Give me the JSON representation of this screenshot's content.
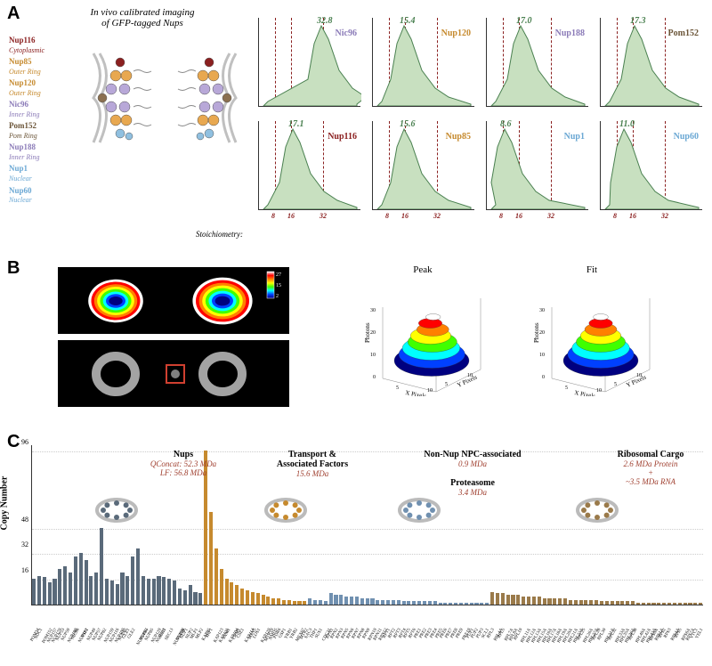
{
  "panelA": {
    "label": "A",
    "title": "In vivo calibrated imaging\nof GFP-tagged Nups",
    "nups": [
      {
        "name": "Nup116",
        "loc": "Cytoplasmic",
        "color": "#8b2020"
      },
      {
        "name": "Nup85",
        "loc": "Outer Ring",
        "color": "#c68a2e"
      },
      {
        "name": "Nup120",
        "loc": "Outer Ring",
        "color": "#c68a2e"
      },
      {
        "name": "Nic96",
        "loc": "Inner Ring",
        "color": "#8b7bb8"
      },
      {
        "name": "Pom152",
        "loc": "Pom Ring",
        "color": "#6b5538"
      },
      {
        "name": "Nup188",
        "loc": "Inner Ring",
        "color": "#8b7bb8"
      },
      {
        "name": "Nup1",
        "loc": "Nuclear",
        "color": "#6ba8d4"
      },
      {
        "name": "Nup60",
        "loc": "Nuclear",
        "color": "#6ba8d4"
      }
    ],
    "npc_colors": {
      "cytoplasmic": "#8b2020",
      "outer_ring": "#e8a850",
      "inner_ring": "#b8a8d8",
      "pom_ring": "#8b7050",
      "nuclear": "#90c0e0",
      "membrane": "#c0c0c0",
      "fg": "#888888"
    },
    "histograms": [
      {
        "name": "Nic96",
        "value": "32.8",
        "color": "#8b7bb8",
        "peak_x": 70,
        "fill": "#c8e0c0"
      },
      {
        "name": "Nup120",
        "value": "15.4",
        "color": "#c68a2e",
        "peak_x": 35,
        "fill": "#c8e0c0"
      },
      {
        "name": "Nup188",
        "value": "17.0",
        "color": "#8b7bb8",
        "peak_x": 38,
        "fill": "#c8e0c0"
      },
      {
        "name": "Pom152",
        "value": "17.3",
        "color": "#6b5538",
        "peak_x": 38,
        "fill": "#c8e0c0"
      },
      {
        "name": "Nup116",
        "value": "17.1",
        "color": "#8b2020",
        "peak_x": 38,
        "fill": "#c8e0c0"
      },
      {
        "name": "Nup85",
        "value": "15.6",
        "color": "#c68a2e",
        "peak_x": 35,
        "fill": "#c8e0c0"
      },
      {
        "name": "Nup1",
        "value": "8.6",
        "color": "#6ba8d4",
        "peak_x": 20,
        "fill": "#c8e0c0"
      },
      {
        "name": "Nup60",
        "value": "11.0",
        "color": "#6ba8d4",
        "peak_x": 26,
        "fill": "#c8e0c0"
      }
    ],
    "ref_lines": [
      18,
      36,
      72
    ],
    "ref_labels": [
      "8",
      "16",
      "32"
    ],
    "stoich_label": "Stoichiometry:",
    "hist_fill": "#c8e0c0",
    "value_color": "#4a8050"
  },
  "panelB": {
    "label": "B",
    "colorbar": {
      "max": "27",
      "mid": "15",
      "min": "2"
    },
    "peak_title": "Peak",
    "fit_title": "Fit",
    "axis_x": "X Pixels",
    "axis_y": "Y Pixels",
    "axis_z": "Photons",
    "z_max": 30,
    "heatmap_colors": [
      "#000080",
      "#0040ff",
      "#00ffff",
      "#40ff00",
      "#ffff00",
      "#ff8000",
      "#ff0000",
      "#ffffff"
    ]
  },
  "panelC": {
    "label": "C",
    "ylabel": "Copy Number",
    "yticks": [
      16,
      32,
      48,
      96
    ],
    "ymax": 100,
    "groups": [
      {
        "name": "Nups",
        "sub": "QConcat: 52.3 MDa\nLF: 56.8 MDa",
        "color": "#5a6a7a",
        "sub_color": "#a04030"
      },
      {
        "name": "Transport &\nAssociated\nFactors",
        "sub": "15.6 MDa",
        "color": "#c68a2e",
        "sub_color": "#a04030"
      },
      {
        "name": "Non-Nup NPC-associated",
        "sub": "0.9 MDa",
        "color": "#7090b0",
        "sub_color": "#a04030"
      },
      {
        "name2": "Proteasome",
        "sub2": "3.4 MDa",
        "color": "#7090b0"
      },
      {
        "name": "Ribosomal Cargo",
        "sub": "2.6 MDa Protein\n+\n~3.5 MDa RNA",
        "color": "#9a7a4a",
        "sub_color": "#a04030"
      }
    ],
    "bars": [
      {
        "v": 16,
        "c": "#5a6a7a",
        "l": "POM34"
      },
      {
        "v": 18,
        "c": "#5a6a7a",
        "l": "NDC1"
      },
      {
        "v": 17,
        "c": "#5a6a7a",
        "l": "POM152"
      },
      {
        "v": 14,
        "c": "#5a6a7a",
        "l": "NUP157"
      },
      {
        "v": 16,
        "c": "#5a6a7a",
        "l": "NUP170"
      },
      {
        "v": 22,
        "c": "#5a6a7a",
        "l": "NUP53"
      },
      {
        "v": 24,
        "c": "#5a6a7a",
        "l": "NUP59"
      },
      {
        "v": 20,
        "c": "#5a6a7a",
        "l": "NUP188"
      },
      {
        "v": 30,
        "c": "#5a6a7a",
        "l": "NIC96"
      },
      {
        "v": 32,
        "c": "#5a6a7a",
        "l": "NUP192"
      },
      {
        "v": 28,
        "c": "#5a6a7a",
        "l": "NSP1"
      },
      {
        "v": 18,
        "c": "#5a6a7a",
        "l": "NUP49"
      },
      {
        "v": 20,
        "c": "#5a6a7a",
        "l": "NUP57"
      },
      {
        "v": 48,
        "c": "#5a6a7a",
        "l": "NUP82"
      },
      {
        "v": 16,
        "c": "#5a6a7a",
        "l": "NUP159"
      },
      {
        "v": 15,
        "c": "#5a6a7a",
        "l": "NUP116"
      },
      {
        "v": 13,
        "c": "#5a6a7a",
        "l": "NUP100"
      },
      {
        "v": 20,
        "c": "#5a6a7a",
        "l": "NUP42"
      },
      {
        "v": 18,
        "c": "#5a6a7a",
        "l": "GLE1"
      },
      {
        "v": 30,
        "c": "#5a6a7a",
        "l": "GLE2"
      },
      {
        "v": 35,
        "c": "#5a6a7a",
        "l": "NUP145C"
      },
      {
        "v": 18,
        "c": "#5a6a7a",
        "l": "NUP84"
      },
      {
        "v": 16,
        "c": "#5a6a7a",
        "l": "NUP85"
      },
      {
        "v": 16,
        "c": "#5a6a7a",
        "l": "NUP120"
      },
      {
        "v": 18,
        "c": "#5a6a7a",
        "l": "NUP133"
      },
      {
        "v": 17,
        "c": "#5a6a7a",
        "l": "SEH1"
      },
      {
        "v": 16,
        "c": "#5a6a7a",
        "l": "SEC13"
      },
      {
        "v": 15,
        "c": "#5a6a7a",
        "l": "NUP145N"
      },
      {
        "v": 10,
        "c": "#5a6a7a",
        "l": "NUP60"
      },
      {
        "v": 9,
        "c": "#5a6a7a",
        "l": "NUP1"
      },
      {
        "v": 12,
        "c": "#5a6a7a",
        "l": "NUP2"
      },
      {
        "v": 8,
        "c": "#5a6a7a",
        "l": "MLP1"
      },
      {
        "v": 7,
        "c": "#5a6a7a",
        "l": "MLP2"
      },
      {
        "v": 96,
        "c": "#c68a2e",
        "l": "KAP95"
      },
      {
        "v": 58,
        "c": "#c68a2e",
        "l": "SRP1"
      },
      {
        "v": 35,
        "c": "#c68a2e",
        "l": "KAP123"
      },
      {
        "v": 22,
        "c": "#c68a2e",
        "l": "KAP121"
      },
      {
        "v": 16,
        "c": "#c68a2e",
        "l": "SXM1"
      },
      {
        "v": 14,
        "c": "#c68a2e",
        "l": "KAP104"
      },
      {
        "v": 12,
        "c": "#c68a2e",
        "l": "CRM1"
      },
      {
        "v": 10,
        "c": "#c68a2e",
        "l": "CSE1"
      },
      {
        "v": 9,
        "c": "#c68a2e",
        "l": "KAP114"
      },
      {
        "v": 8,
        "c": "#c68a2e",
        "l": "MSN5"
      },
      {
        "v": 7,
        "c": "#c68a2e",
        "l": "LOS1"
      },
      {
        "v": 6,
        "c": "#c68a2e",
        "l": "KAP120"
      },
      {
        "v": 5,
        "c": "#c68a2e",
        "l": "MTR10"
      },
      {
        "v": 4,
        "c": "#c68a2e",
        "l": "NMD5"
      },
      {
        "v": 4,
        "c": "#c68a2e",
        "l": "PDR6"
      },
      {
        "v": 3,
        "c": "#c68a2e",
        "l": "GSP1"
      },
      {
        "v": 3,
        "c": "#c68a2e",
        "l": "YRB1"
      },
      {
        "v": 2,
        "c": "#c68a2e",
        "l": "YRB2"
      },
      {
        "v": 2,
        "c": "#c68a2e",
        "l": "MEX67"
      },
      {
        "v": 2,
        "c": "#c68a2e",
        "l": "MTR2"
      },
      {
        "v": 4,
        "c": "#7090b0",
        "l": "SAC3"
      },
      {
        "v": 3,
        "c": "#7090b0",
        "l": "THP1"
      },
      {
        "v": 3,
        "c": "#7090b0",
        "l": "SUS1"
      },
      {
        "v": 2,
        "c": "#7090b0",
        "l": "CDC31"
      },
      {
        "v": 7,
        "c": "#7090b0",
        "l": "RPN1"
      },
      {
        "v": 6,
        "c": "#7090b0",
        "l": "RPN2"
      },
      {
        "v": 6,
        "c": "#7090b0",
        "l": "RPN3"
      },
      {
        "v": 5,
        "c": "#7090b0",
        "l": "RPN5"
      },
      {
        "v": 5,
        "c": "#7090b0",
        "l": "RPN6"
      },
      {
        "v": 5,
        "c": "#7090b0",
        "l": "RPN7"
      },
      {
        "v": 4,
        "c": "#7090b0",
        "l": "RPN8"
      },
      {
        "v": 4,
        "c": "#7090b0",
        "l": "RPN9"
      },
      {
        "v": 4,
        "c": "#7090b0",
        "l": "RPN10"
      },
      {
        "v": 3,
        "c": "#7090b0",
        "l": "RPN11"
      },
      {
        "v": 3,
        "c": "#7090b0",
        "l": "RPN12"
      },
      {
        "v": 3,
        "c": "#7090b0",
        "l": "RPT1"
      },
      {
        "v": 3,
        "c": "#7090b0",
        "l": "RPT2"
      },
      {
        "v": 3,
        "c": "#7090b0",
        "l": "RPT3"
      },
      {
        "v": 2,
        "c": "#7090b0",
        "l": "RPT4"
      },
      {
        "v": 2,
        "c": "#7090b0",
        "l": "RPT5"
      },
      {
        "v": 2,
        "c": "#7090b0",
        "l": "RPT6"
      },
      {
        "v": 2,
        "c": "#7090b0",
        "l": "PRE1"
      },
      {
        "v": 2,
        "c": "#7090b0",
        "l": "PRE2"
      },
      {
        "v": 2,
        "c": "#7090b0",
        "l": "PRE3"
      },
      {
        "v": 2,
        "c": "#7090b0",
        "l": "PRE4"
      },
      {
        "v": 1,
        "c": "#7090b0",
        "l": "PRE5"
      },
      {
        "v": 1,
        "c": "#7090b0",
        "l": "PRE6"
      },
      {
        "v": 1,
        "c": "#7090b0",
        "l": "PRE7"
      },
      {
        "v": 1,
        "c": "#7090b0",
        "l": "PRE8"
      },
      {
        "v": 1,
        "c": "#7090b0",
        "l": "PRE9"
      },
      {
        "v": 1,
        "c": "#7090b0",
        "l": "PRE10"
      },
      {
        "v": 1,
        "c": "#7090b0",
        "l": "PUP1"
      },
      {
        "v": 1,
        "c": "#7090b0",
        "l": "PUP2"
      },
      {
        "v": 1,
        "c": "#7090b0",
        "l": "PUP3"
      },
      {
        "v": 1,
        "c": "#7090b0",
        "l": "SCL1"
      },
      {
        "v": 8,
        "c": "#9a7a4a",
        "l": "RPL3"
      },
      {
        "v": 7,
        "c": "#9a7a4a",
        "l": "RPL4A"
      },
      {
        "v": 7,
        "c": "#9a7a4a",
        "l": "RPL5"
      },
      {
        "v": 6,
        "c": "#9a7a4a",
        "l": "RPL7A"
      },
      {
        "v": 6,
        "c": "#9a7a4a",
        "l": "RPL8A"
      },
      {
        "v": 6,
        "c": "#9a7a4a",
        "l": "RPL10"
      },
      {
        "v": 5,
        "c": "#9a7a4a",
        "l": "RPL11A"
      },
      {
        "v": 5,
        "c": "#9a7a4a",
        "l": "RPL12A"
      },
      {
        "v": 5,
        "c": "#9a7a4a",
        "l": "RPL13A"
      },
      {
        "v": 5,
        "c": "#9a7a4a",
        "l": "RPL15A"
      },
      {
        "v": 4,
        "c": "#9a7a4a",
        "l": "RPL16A"
      },
      {
        "v": 4,
        "c": "#9a7a4a",
        "l": "RPL17A"
      },
      {
        "v": 4,
        "c": "#9a7a4a",
        "l": "RPL18A"
      },
      {
        "v": 4,
        "c": "#9a7a4a",
        "l": "RPL19A"
      },
      {
        "v": 4,
        "c": "#9a7a4a",
        "l": "RPL20A"
      },
      {
        "v": 3,
        "c": "#9a7a4a",
        "l": "RPL21A"
      },
      {
        "v": 3,
        "c": "#9a7a4a",
        "l": "RPL23A"
      },
      {
        "v": 3,
        "c": "#9a7a4a",
        "l": "RPL25"
      },
      {
        "v": 3,
        "c": "#9a7a4a",
        "l": "RPL26A"
      },
      {
        "v": 3,
        "c": "#9a7a4a",
        "l": "RPL27A"
      },
      {
        "v": 3,
        "c": "#9a7a4a",
        "l": "RPL28"
      },
      {
        "v": 2,
        "c": "#9a7a4a",
        "l": "RPL30"
      },
      {
        "v": 2,
        "c": "#9a7a4a",
        "l": "RPL31A"
      },
      {
        "v": 2,
        "c": "#9a7a4a",
        "l": "RPL32"
      },
      {
        "v": 2,
        "c": "#9a7a4a",
        "l": "RPL33A"
      },
      {
        "v": 2,
        "c": "#9a7a4a",
        "l": "RPL35A"
      },
      {
        "v": 2,
        "c": "#9a7a4a",
        "l": "RPL36A"
      },
      {
        "v": 2,
        "c": "#9a7a4a",
        "l": "RPL38"
      },
      {
        "v": 1,
        "c": "#9a7a4a",
        "l": "RPL40A"
      },
      {
        "v": 1,
        "c": "#9a7a4a",
        "l": "RPL42A"
      },
      {
        "v": 1,
        "c": "#9a7a4a",
        "l": "RPL43A"
      },
      {
        "v": 1,
        "c": "#9a7a4a",
        "l": "RPS0A"
      },
      {
        "v": 1,
        "c": "#9a7a4a",
        "l": "RPS1A"
      },
      {
        "v": 1,
        "c": "#9a7a4a",
        "l": "RPS2"
      },
      {
        "v": 1,
        "c": "#9a7a4a",
        "l": "RPS3"
      },
      {
        "v": 1,
        "c": "#9a7a4a",
        "l": "RPS4A"
      },
      {
        "v": 1,
        "c": "#9a7a4a",
        "l": "RPS5"
      },
      {
        "v": 1,
        "c": "#9a7a4a",
        "l": "RPS6A"
      },
      {
        "v": 1,
        "c": "#9a7a4a",
        "l": "RPS7A"
      },
      {
        "v": 1,
        "c": "#9a7a4a",
        "l": "VTC1"
      },
      {
        "v": 1,
        "c": "#9a7a4a",
        "l": "YEL1"
      }
    ]
  }
}
